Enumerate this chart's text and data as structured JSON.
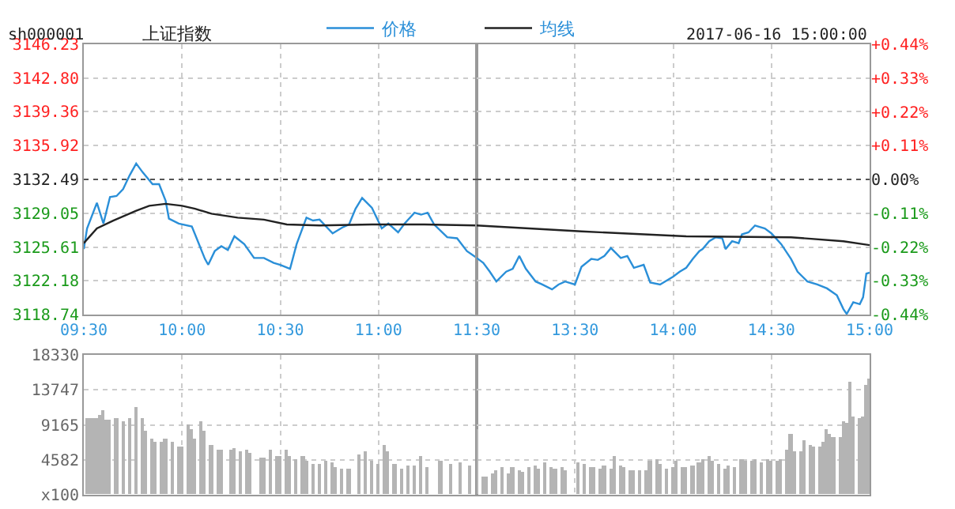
{
  "chart_data": [
    {
      "type": "line",
      "title": "上证指数",
      "subtitle": "sh000001",
      "annotations": [
        "2017-06-16 15:00:00"
      ],
      "legend": "top",
      "grid": true,
      "line_style": "solid",
      "marker": "none",
      "xlim": [
        "2017-06-16T09:30",
        "2017-06-16T11:30"
      ],
      "xticks": [
        {
          "value": "2017-06-16T09:30",
          "label": "09:30"
        },
        {
          "value": "2017-06-16T10:00",
          "label": "10:00"
        },
        {
          "value": "2017-06-16T10:30",
          "label": "10:30"
        },
        {
          "value": "2017-06-16T11:00",
          "label": "11:00"
        },
        {
          "value": "2017-06-16T11:30",
          "label": "11:30"
        }
      ],
      "ylim": [
        3118.74,
        3146.23
      ],
      "yticks": [
        3118.74,
        3122.18,
        3125.61,
        3129.05,
        3132.49,
        3135.92,
        3139.36,
        {
          "value": 3142.8,
          "label": "3142.80"
        },
        3146.23
      ],
      "ref_lines": [
        {
          "axis": "y",
          "value": 3132.49,
          "label": null,
          "color": "#555555",
          "line_style": "dotted"
        }
      ],
      "series": [
        {
          "name": "价格",
          "color": "#2a8fd8",
          "x": [
            "2017-06-16T09:30",
            "2017-06-16T09:31",
            "2017-06-16T09:34",
            "2017-06-16T09:36",
            "2017-06-16T09:38",
            "2017-06-16T09:40",
            "2017-06-16T09:42",
            "2017-06-16T09:44",
            "2017-06-16T09:46",
            "2017-06-16T09:48",
            "2017-06-16T09:51",
            "2017-06-16T09:53",
            "2017-06-16T09:55",
            "2017-06-16T09:56",
            "2017-06-16T09:59",
            "2017-06-16T10:03",
            "2017-06-16T10:07",
            "2017-06-16T10:08",
            "2017-06-16T10:10",
            "2017-06-16T10:12",
            "2017-06-16T10:14",
            "2017-06-16T10:16",
            "2017-06-16T10:19",
            "2017-06-16T10:22",
            "2017-06-16T10:25",
            "2017-06-16T10:28",
            "2017-06-16T10:30",
            "2017-06-16T10:33",
            "2017-06-16T10:35",
            "2017-06-16T10:38",
            "2017-06-16T10:40",
            "2017-06-16T10:42",
            "2017-06-16T10:46",
            "2017-06-16T10:49",
            "2017-06-16T10:51",
            "2017-06-16T10:53",
            "2017-06-16T10:55",
            "2017-06-16T10:58",
            "2017-06-16T11:01",
            "2017-06-16T11:03",
            "2017-06-16T11:06",
            "2017-06-16T11:08",
            "2017-06-16T11:11",
            "2017-06-16T11:13",
            "2017-06-16T11:15",
            "2017-06-16T11:17",
            "2017-06-16T11:21",
            "2017-06-16T11:24",
            "2017-06-16T11:27",
            "2017-06-16T11:30"
          ],
          "values": [
            3125.4,
            3127.5,
            3130.1,
            3128.0,
            3130.7,
            3130.8,
            3131.5,
            3132.9,
            3134.1,
            3133.2,
            3132.0,
            3132.0,
            3130.3,
            3128.5,
            3128.0,
            3127.7,
            3124.4,
            3123.8,
            3125.2,
            3125.7,
            3125.3,
            3126.7,
            3125.9,
            3124.5,
            3124.5,
            3124.0,
            3123.8,
            3123.4,
            3125.9,
            3128.6,
            3128.3,
            3128.4,
            3127.0,
            3127.6,
            3127.9,
            3129.5,
            3130.6,
            3129.6,
            3127.5,
            3128.0,
            3127.1,
            3128.0,
            3129.1,
            3128.9,
            3129.1,
            3127.9,
            3126.6,
            3126.5,
            3125.2,
            3124.5
          ]
        },
        {
          "name": "均线",
          "color": "#222222",
          "x": [
            "2017-06-16T09:30",
            "2017-06-16T09:34",
            "2017-06-16T09:39",
            "2017-06-16T09:46",
            "2017-06-16T09:50",
            "2017-06-16T09:55",
            "2017-06-16T10:00",
            "2017-06-16T10:04",
            "2017-06-16T10:09",
            "2017-06-16T10:17",
            "2017-06-16T10:25",
            "2017-06-16T10:32",
            "2017-06-16T10:42",
            "2017-06-16T10:58",
            "2017-06-16T11:14",
            "2017-06-16T11:30"
          ],
          "values": [
            3126.0,
            3127.5,
            3128.3,
            3129.3,
            3129.8,
            3130.0,
            3129.8,
            3129.5,
            3129.0,
            3128.6,
            3128.4,
            3127.9,
            3127.8,
            3127.9,
            3127.9,
            3127.8
          ]
        }
      ]
    },
    {
      "type": "line",
      "grid": true,
      "line_style": "solid",
      "marker": "none",
      "tick_labels": "x",
      "xlim": [
        "2017-06-16T13:00",
        "2017-06-16T15:00"
      ],
      "xticks": [
        {
          "value": "2017-06-16T13:30",
          "label": "13:30"
        },
        {
          "value": "2017-06-16T14:00",
          "label": "14:00"
        },
        {
          "value": "2017-06-16T14:30",
          "label": "14:30"
        },
        {
          "value": "2017-06-16T15:00",
          "label": "15:00"
        }
      ],
      "ylim": [
        3118.74,
        3146.23
      ],
      "yticks": [
        {
          "value": 3118.74,
          "label": null
        },
        {
          "value": 3122.18,
          "label": null
        },
        {
          "value": 3125.61,
          "label": null
        },
        {
          "value": 3129.05,
          "label": null
        },
        {
          "value": 3132.49,
          "label": null
        },
        {
          "value": 3135.92,
          "label": null
        },
        {
          "value": 3139.36,
          "label": null
        },
        {
          "value": 3142.8,
          "label": null
        },
        {
          "value": 3146.23,
          "label": null
        }
      ],
      "y2lim": [
        -0.44,
        0.44
      ],
      "y2ticks": [
        {
          "value": -0.44,
          "label": "-0.44%"
        },
        {
          "value": -0.33,
          "label": "-0.33%"
        },
        {
          "value": -0.22,
          "label": "-0.22%"
        },
        {
          "value": -0.11,
          "label": "-0.11%"
        },
        {
          "value": 0,
          "label": "0.00%"
        },
        {
          "value": 0.11,
          "label": "+0.11%"
        },
        {
          "value": 0.22,
          "label": "+0.22%"
        },
        {
          "value": 0.33,
          "label": "+0.33%"
        },
        {
          "value": 0.44,
          "label": "+0.44%"
        }
      ],
      "ref_lines": [
        {
          "axis": "y",
          "value": 3132.49,
          "label": null,
          "color": "#555555",
          "line_style": "dotted"
        }
      ],
      "series": [
        {
          "color": "#2a8fd8",
          "x": [
            "2017-06-16T13:00",
            "2017-06-16T13:02",
            "2017-06-16T13:04",
            "2017-06-16T13:06",
            "2017-06-16T13:09",
            "2017-06-16T13:11",
            "2017-06-16T13:13",
            "2017-06-16T13:15",
            "2017-06-16T13:18",
            "2017-06-16T13:20",
            "2017-06-16T13:23",
            "2017-06-16T13:25",
            "2017-06-16T13:27",
            "2017-06-16T13:30",
            "2017-06-16T13:32",
            "2017-06-16T13:35",
            "2017-06-16T13:37",
            "2017-06-16T13:39",
            "2017-06-16T13:41",
            "2017-06-16T13:44",
            "2017-06-16T13:46",
            "2017-06-16T13:48",
            "2017-06-16T13:51",
            "2017-06-16T13:53",
            "2017-06-16T13:56",
            "2017-06-16T14:00",
            "2017-06-16T14:02",
            "2017-06-16T14:04",
            "2017-06-16T14:06",
            "2017-06-16T14:08",
            "2017-06-16T14:09",
            "2017-06-16T14:11",
            "2017-06-16T14:13",
            "2017-06-16T14:15",
            "2017-06-16T14:16",
            "2017-06-16T14:18",
            "2017-06-16T14:20",
            "2017-06-16T14:21",
            "2017-06-16T14:23",
            "2017-06-16T14:25",
            "2017-06-16T14:28",
            "2017-06-16T14:30",
            "2017-06-16T14:33",
            "2017-06-16T14:36",
            "2017-06-16T14:38",
            "2017-06-16T14:41",
            "2017-06-16T14:44",
            "2017-06-16T14:47",
            "2017-06-16T14:50",
            "2017-06-16T14:52",
            "2017-06-16T14:53",
            "2017-06-16T14:55",
            "2017-06-16T14:57",
            "2017-06-16T14:58",
            "2017-06-16T14:59",
            "2017-06-16T15:00"
          ],
          "values": [
            3124.5,
            3124.0,
            3123.1,
            3122.1,
            3123.1,
            3123.4,
            3124.7,
            3123.4,
            3122.1,
            3121.8,
            3121.3,
            3121.8,
            3122.1,
            3121.8,
            3123.6,
            3124.4,
            3124.3,
            3124.7,
            3125.5,
            3124.5,
            3124.7,
            3123.5,
            3123.8,
            3122.0,
            3121.8,
            3122.6,
            3123.1,
            3123.5,
            3124.4,
            3125.2,
            3125.4,
            3126.2,
            3126.6,
            3126.5,
            3125.4,
            3126.2,
            3126.0,
            3126.9,
            3127.1,
            3127.8,
            3127.5,
            3127.0,
            3125.9,
            3124.4,
            3123.1,
            3122.1,
            3121.8,
            3121.4,
            3120.7,
            3119.3,
            3118.8,
            3120.0,
            3119.8,
            3120.5,
            3122.9,
            3123.0
          ]
        },
        {
          "color": "#222222",
          "x": [
            "2017-06-16T13:00",
            "2017-06-16T13:32",
            "2017-06-16T14:04",
            "2017-06-16T14:36",
            "2017-06-16T14:52",
            "2017-06-16T15:00"
          ],
          "values": [
            3127.8,
            3127.2,
            3126.7,
            3126.6,
            3126.2,
            3125.8
          ]
        }
      ]
    },
    {
      "type": "bar",
      "color": "#b4b4b4",
      "grid": true,
      "tick_labels": "y",
      "xlim": [
        "2017-06-16T09:30",
        "2017-06-16T11:30"
      ],
      "xticks": [
        {
          "value": "2017-06-16T10:00",
          "label": null
        },
        {
          "value": "2017-06-16T10:30",
          "label": null
        },
        {
          "value": "2017-06-16T11:00",
          "label": null
        }
      ],
      "ylim": [
        0,
        18330
      ],
      "yticks": [
        {
          "value": 0,
          "label": "x100"
        },
        4582,
        9165,
        13747,
        18330
      ],
      "x": [
        "2017-06-16T09:31",
        "2017-06-16T09:32",
        "2017-06-16T09:33",
        "2017-06-16T09:34",
        "2017-06-16T09:35",
        "2017-06-16T09:36",
        "2017-06-16T09:37",
        "2017-06-16T09:38",
        "2017-06-16T09:40",
        "2017-06-16T09:42",
        "2017-06-16T09:44",
        "2017-06-16T09:46",
        "2017-06-16T09:48",
        "2017-06-16T09:49",
        "2017-06-16T09:51",
        "2017-06-16T09:52",
        "2017-06-16T09:54",
        "2017-06-16T09:55",
        "2017-06-16T09:57",
        "2017-06-16T09:59",
        "2017-06-16T10:00",
        "2017-06-16T10:02",
        "2017-06-16T10:03",
        "2017-06-16T10:04",
        "2017-06-16T10:06",
        "2017-06-16T10:07",
        "2017-06-16T10:09",
        "2017-06-16T10:11",
        "2017-06-16T10:12",
        "2017-06-16T10:15",
        "2017-06-16T10:16",
        "2017-06-16T10:18",
        "2017-06-16T10:20",
        "2017-06-16T10:21",
        "2017-06-16T10:24",
        "2017-06-16T10:25",
        "2017-06-16T10:27",
        "2017-06-16T10:29",
        "2017-06-16T10:30",
        "2017-06-16T10:32",
        "2017-06-16T10:33",
        "2017-06-16T10:35",
        "2017-06-16T10:37",
        "2017-06-16T10:38",
        "2017-06-16T10:40",
        "2017-06-16T10:42",
        "2017-06-16T10:44",
        "2017-06-16T10:46",
        "2017-06-16T10:47",
        "2017-06-16T10:49",
        "2017-06-16T10:51",
        "2017-06-16T10:54",
        "2017-06-16T10:56",
        "2017-06-16T10:58",
        "2017-06-16T11:00",
        "2017-06-16T11:02",
        "2017-06-16T11:03",
        "2017-06-16T11:05",
        "2017-06-16T11:07",
        "2017-06-16T11:09",
        "2017-06-16T11:11",
        "2017-06-16T11:13",
        "2017-06-16T11:15",
        "2017-06-16T11:19",
        "2017-06-16T11:22",
        "2017-06-16T11:25",
        "2017-06-16T11:28"
      ],
      "values": [
        10100,
        10100,
        10100,
        10100,
        10500,
        11000,
        9900,
        9900,
        10100,
        9600,
        10100,
        11400,
        10100,
        8300,
        7400,
        7000,
        7000,
        7300,
        7000,
        6400,
        6300,
        9200,
        8600,
        7300,
        9700,
        8400,
        6600,
        5900,
        5900,
        5900,
        6000,
        5700,
        5900,
        5500,
        4900,
        4900,
        5900,
        5100,
        5100,
        5900,
        5100,
        4700,
        5100,
        4500,
        4000,
        4000,
        4500,
        4200,
        3700,
        3400,
        3400,
        5300,
        5600,
        4400,
        4000,
        6600,
        5600,
        4000,
        3400,
        3800,
        3800,
        5100,
        3700,
        4500,
        4000,
        4200,
        3800
      ]
    },
    {
      "type": "bar",
      "color": "#b4b4b4",
      "grid": true,
      "tick_labels": false,
      "xlim": [
        "2017-06-16T13:00",
        "2017-06-16T15:00"
      ],
      "xticks": [
        {
          "value": "2017-06-16T13:30",
          "label": null
        },
        {
          "value": "2017-06-16T14:00",
          "label": null
        },
        {
          "value": "2017-06-16T14:30",
          "label": null
        }
      ],
      "ylim": [
        0,
        18330
      ],
      "yticks": [
        {
          "value": 4582,
          "label": null
        },
        {
          "value": 9165,
          "label": null
        },
        {
          "value": 13747,
          "label": null
        }
      ],
      "x": [
        "2017-06-16T13:00",
        "2017-06-16T13:02",
        "2017-06-16T13:03",
        "2017-06-16T13:05",
        "2017-06-16T13:06",
        "2017-06-16T13:08",
        "2017-06-16T13:10",
        "2017-06-16T13:11",
        "2017-06-16T13:13",
        "2017-06-16T13:14",
        "2017-06-16T13:16",
        "2017-06-16T13:18",
        "2017-06-16T13:19",
        "2017-06-16T13:21",
        "2017-06-16T13:23",
        "2017-06-16T13:24",
        "2017-06-16T13:26",
        "2017-06-16T13:27",
        "2017-06-16T13:31",
        "2017-06-16T13:33",
        "2017-06-16T13:35",
        "2017-06-16T13:36",
        "2017-06-16T13:38",
        "2017-06-16T13:39",
        "2017-06-16T13:41",
        "2017-06-16T13:42",
        "2017-06-16T13:44",
        "2017-06-16T13:45",
        "2017-06-16T13:47",
        "2017-06-16T13:48",
        "2017-06-16T13:50",
        "2017-06-16T13:52",
        "2017-06-16T13:53",
        "2017-06-16T13:55",
        "2017-06-16T13:56",
        "2017-06-16T13:58",
        "2017-06-16T14:00",
        "2017-06-16T14:01",
        "2017-06-16T14:03",
        "2017-06-16T14:04",
        "2017-06-16T14:06",
        "2017-06-16T14:08",
        "2017-06-16T14:09",
        "2017-06-16T14:11",
        "2017-06-16T14:12",
        "2017-06-16T14:14",
        "2017-06-16T14:16",
        "2017-06-16T14:17",
        "2017-06-16T14:19",
        "2017-06-16T14:21",
        "2017-06-16T14:22",
        "2017-06-16T14:24",
        "2017-06-16T14:25",
        "2017-06-16T14:27",
        "2017-06-16T14:29",
        "2017-06-16T14:30",
        "2017-06-16T14:32",
        "2017-06-16T14:33",
        "2017-06-16T14:35",
        "2017-06-16T14:36",
        "2017-06-16T14:37",
        "2017-06-16T14:39",
        "2017-06-16T14:40",
        "2017-06-16T14:42",
        "2017-06-16T14:43",
        "2017-06-16T14:45",
        "2017-06-16T14:46",
        "2017-06-16T14:47",
        "2017-06-16T14:48",
        "2017-06-16T14:49",
        "2017-06-16T14:51",
        "2017-06-16T14:52",
        "2017-06-16T14:53",
        "2017-06-16T14:54",
        "2017-06-16T14:55",
        "2017-06-16T14:57",
        "2017-06-16T14:58",
        "2017-06-16T14:59",
        "2017-06-16T15:00"
      ],
      "values": [
        8600,
        2400,
        2400,
        2700,
        3200,
        3700,
        2700,
        3700,
        3100,
        2900,
        3700,
        3800,
        3400,
        4200,
        3700,
        3400,
        3600,
        3100,
        4200,
        4000,
        3700,
        3700,
        3400,
        3800,
        3400,
        5100,
        3800,
        3700,
        3200,
        3200,
        3200,
        3100,
        4500,
        4700,
        4000,
        3400,
        3600,
        4500,
        3700,
        3700,
        3800,
        4200,
        4700,
        5000,
        4500,
        4000,
        3400,
        3800,
        3500,
        4700,
        4500,
        4500,
        4700,
        4200,
        4700,
        4500,
        4500,
        4700,
        5800,
        7900,
        5600,
        5600,
        7100,
        6600,
        6200,
        6300,
        6900,
        8600,
        7900,
        7500,
        7600,
        9600,
        9400,
        14800,
        10300,
        10100,
        10300,
        14400,
        15300
      ]
    }
  ]
}
